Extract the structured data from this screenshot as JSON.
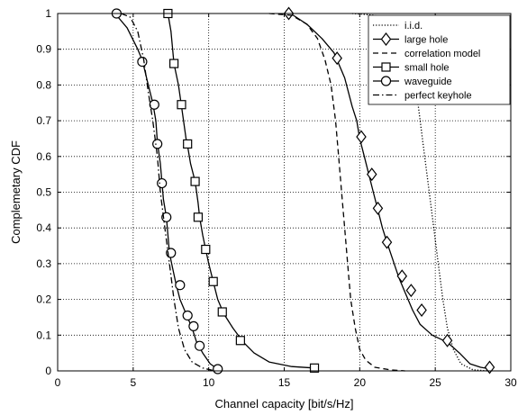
{
  "chart_data": {
    "type": "line",
    "xlabel": "Channel capacity [bit/s/Hz]",
    "ylabel": "Complemetary CDF",
    "xlim": [
      0,
      30
    ],
    "ylim": [
      0,
      1
    ],
    "xticks": [
      0,
      5,
      10,
      15,
      20,
      25,
      30
    ],
    "yticks": [
      0,
      0.1,
      0.2,
      0.3,
      0.4,
      0.5,
      0.6,
      0.7,
      0.8,
      0.9,
      1
    ],
    "grid": true,
    "legend_position": "top-right",
    "series": [
      {
        "name": "i.i.d.",
        "style": "dotted",
        "marker": "none",
        "points": [
          [
            19.5,
            1.0
          ],
          [
            21.0,
            0.995
          ],
          [
            22.0,
            0.98
          ],
          [
            22.8,
            0.95
          ],
          [
            23.3,
            0.9
          ],
          [
            23.7,
            0.8
          ],
          [
            24.0,
            0.7
          ],
          [
            24.3,
            0.6
          ],
          [
            24.6,
            0.5
          ],
          [
            24.9,
            0.4
          ],
          [
            25.2,
            0.3
          ],
          [
            25.5,
            0.2
          ],
          [
            25.8,
            0.12
          ],
          [
            26.2,
            0.06
          ],
          [
            26.7,
            0.02
          ],
          [
            27.5,
            0.003
          ],
          [
            28.5,
            0.0
          ]
        ]
      },
      {
        "name": "large hole",
        "style": "solid",
        "marker": "diamond",
        "points": [
          [
            15.0,
            1.0
          ],
          [
            15.6,
            0.995
          ],
          [
            16.5,
            0.97
          ],
          [
            17.5,
            0.93
          ],
          [
            18.3,
            0.89
          ],
          [
            19.0,
            0.82
          ],
          [
            19.5,
            0.74
          ],
          [
            19.8,
            0.7
          ],
          [
            20.0,
            0.65
          ],
          [
            20.3,
            0.6
          ],
          [
            20.6,
            0.55
          ],
          [
            20.9,
            0.5
          ],
          [
            21.2,
            0.45
          ],
          [
            21.5,
            0.4
          ],
          [
            21.8,
            0.36
          ],
          [
            22.2,
            0.31
          ],
          [
            22.6,
            0.26
          ],
          [
            23.0,
            0.22
          ],
          [
            23.5,
            0.17
          ],
          [
            24.0,
            0.13
          ],
          [
            24.8,
            0.1
          ],
          [
            25.8,
            0.08
          ],
          [
            26.6,
            0.05
          ],
          [
            27.3,
            0.02
          ],
          [
            28.0,
            0.01
          ],
          [
            28.7,
            0.005
          ]
        ],
        "marker_points": [
          [
            15.3,
            1.0
          ],
          [
            18.5,
            0.875
          ],
          [
            20.1,
            0.655
          ],
          [
            20.8,
            0.55
          ],
          [
            21.2,
            0.455
          ],
          [
            21.8,
            0.36
          ],
          [
            22.8,
            0.265
          ],
          [
            23.4,
            0.225
          ],
          [
            24.1,
            0.17
          ],
          [
            25.8,
            0.085
          ],
          [
            28.6,
            0.01
          ]
        ]
      },
      {
        "name": "correlation model",
        "style": "dashed",
        "marker": "none",
        "points": [
          [
            14.0,
            1.0
          ],
          [
            15.5,
            0.995
          ],
          [
            16.5,
            0.97
          ],
          [
            17.2,
            0.93
          ],
          [
            17.7,
            0.87
          ],
          [
            18.1,
            0.8
          ],
          [
            18.4,
            0.7
          ],
          [
            18.6,
            0.6
          ],
          [
            18.8,
            0.5
          ],
          [
            19.0,
            0.4
          ],
          [
            19.2,
            0.3
          ],
          [
            19.4,
            0.2
          ],
          [
            19.7,
            0.12
          ],
          [
            20.0,
            0.06
          ],
          [
            20.4,
            0.03
          ],
          [
            21.0,
            0.01
          ],
          [
            22.0,
            0.003
          ],
          [
            23.0,
            0.0
          ]
        ]
      },
      {
        "name": "small hole",
        "style": "solid",
        "marker": "square",
        "points": [
          [
            7.3,
            1.0
          ],
          [
            7.5,
            0.95
          ],
          [
            7.7,
            0.86
          ],
          [
            8.0,
            0.8
          ],
          [
            8.2,
            0.74
          ],
          [
            8.5,
            0.65
          ],
          [
            8.6,
            0.63
          ],
          [
            8.8,
            0.58
          ],
          [
            9.1,
            0.53
          ],
          [
            9.3,
            0.47
          ],
          [
            9.4,
            0.43
          ],
          [
            9.6,
            0.38
          ],
          [
            9.8,
            0.34
          ],
          [
            10.0,
            0.3
          ],
          [
            10.3,
            0.25
          ],
          [
            10.6,
            0.2
          ],
          [
            11.0,
            0.16
          ],
          [
            11.6,
            0.12
          ],
          [
            12.3,
            0.08
          ],
          [
            13.0,
            0.05
          ],
          [
            14.0,
            0.025
          ],
          [
            15.5,
            0.012
          ],
          [
            17.0,
            0.008
          ]
        ],
        "marker_points": [
          [
            7.3,
            1.0
          ],
          [
            7.7,
            0.86
          ],
          [
            8.2,
            0.745
          ],
          [
            8.6,
            0.635
          ],
          [
            9.1,
            0.53
          ],
          [
            9.3,
            0.43
          ],
          [
            9.8,
            0.34
          ],
          [
            10.3,
            0.25
          ],
          [
            10.9,
            0.165
          ],
          [
            12.1,
            0.085
          ],
          [
            17.0,
            0.008
          ]
        ]
      },
      {
        "name": "waveguide",
        "style": "solid",
        "marker": "circle",
        "points": [
          [
            3.8,
            1.0
          ],
          [
            4.6,
            0.96
          ],
          [
            5.3,
            0.9
          ],
          [
            5.6,
            0.87
          ],
          [
            6.0,
            0.8
          ],
          [
            6.3,
            0.75
          ],
          [
            6.5,
            0.7
          ],
          [
            6.6,
            0.64
          ],
          [
            6.8,
            0.58
          ],
          [
            6.9,
            0.53
          ],
          [
            7.0,
            0.48
          ],
          [
            7.2,
            0.43
          ],
          [
            7.3,
            0.38
          ],
          [
            7.4,
            0.33
          ],
          [
            7.6,
            0.29
          ],
          [
            7.8,
            0.25
          ],
          [
            8.1,
            0.2
          ],
          [
            8.5,
            0.16
          ],
          [
            8.9,
            0.12
          ],
          [
            9.2,
            0.08
          ],
          [
            9.6,
            0.05
          ],
          [
            10.1,
            0.02
          ],
          [
            10.6,
            0.005
          ]
        ],
        "marker_points": [
          [
            3.9,
            1.0
          ],
          [
            5.6,
            0.865
          ],
          [
            6.4,
            0.745
          ],
          [
            6.6,
            0.635
          ],
          [
            6.9,
            0.525
          ],
          [
            7.2,
            0.43
          ],
          [
            7.5,
            0.33
          ],
          [
            8.1,
            0.24
          ],
          [
            8.6,
            0.155
          ],
          [
            9.0,
            0.125
          ],
          [
            9.4,
            0.07
          ],
          [
            10.6,
            0.005
          ]
        ]
      },
      {
        "name": "perfect keyhole",
        "style": "dashdot",
        "marker": "none",
        "points": [
          [
            4.2,
            1.0
          ],
          [
            4.8,
            0.99
          ],
          [
            5.3,
            0.95
          ],
          [
            5.7,
            0.87
          ],
          [
            6.0,
            0.78
          ],
          [
            6.3,
            0.7
          ],
          [
            6.6,
            0.6
          ],
          [
            6.8,
            0.5
          ],
          [
            7.1,
            0.4
          ],
          [
            7.4,
            0.3
          ],
          [
            7.7,
            0.2
          ],
          [
            8.0,
            0.12
          ],
          [
            8.4,
            0.06
          ],
          [
            8.9,
            0.025
          ],
          [
            9.6,
            0.008
          ],
          [
            10.4,
            0.0
          ]
        ]
      }
    ]
  }
}
